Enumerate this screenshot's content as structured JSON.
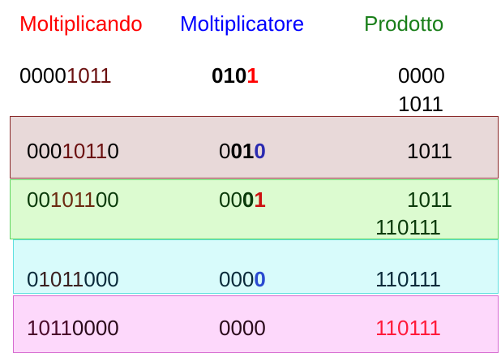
{
  "headers": {
    "multiplicand": "Moltiplicando",
    "multiplier": "Moltiplicatore",
    "product": "Prodotto"
  },
  "colors": {
    "multiplicand_header": "#ff0000",
    "multiplier_header": "#0000ff",
    "product_header": "#1a7f1a",
    "step1_bg": "#e8d9d9",
    "step2_bg": "#dcfbd0",
    "step3_bg": "#d8fbfb",
    "step4_bg": "#fdd8fb"
  },
  "initial": {
    "multiplicand_a": "0000",
    "multiplicand_b": "1011",
    "multiplier_a": "010",
    "multiplier_b": "1",
    "product_line1": "0000",
    "product_line2": "1011"
  },
  "steps": [
    {
      "multiplicand_a": "000",
      "multiplicand_b": "1011",
      "multiplicand_c": "0",
      "multiplier_a": "0",
      "multiplier_b": "01",
      "multiplier_c": "0",
      "product_line1": "1011",
      "product_line2": ""
    },
    {
      "multiplicand_a": "00",
      "multiplicand_b": "1011",
      "multiplicand_c": "00",
      "multiplier_a": "00",
      "multiplier_b": "0",
      "multiplier_c": "1",
      "product_line1": "1011",
      "product_line2": "110111"
    },
    {
      "multiplicand_a": "0",
      "multiplicand_b": "1011",
      "multiplicand_c": "000",
      "multiplier_a": "000",
      "multiplier_b": "0",
      "product_line1": "110111"
    },
    {
      "multiplicand_a": "1011",
      "multiplicand_b": "0000",
      "multiplier_a": "0000",
      "product_line1": "110111"
    }
  ]
}
